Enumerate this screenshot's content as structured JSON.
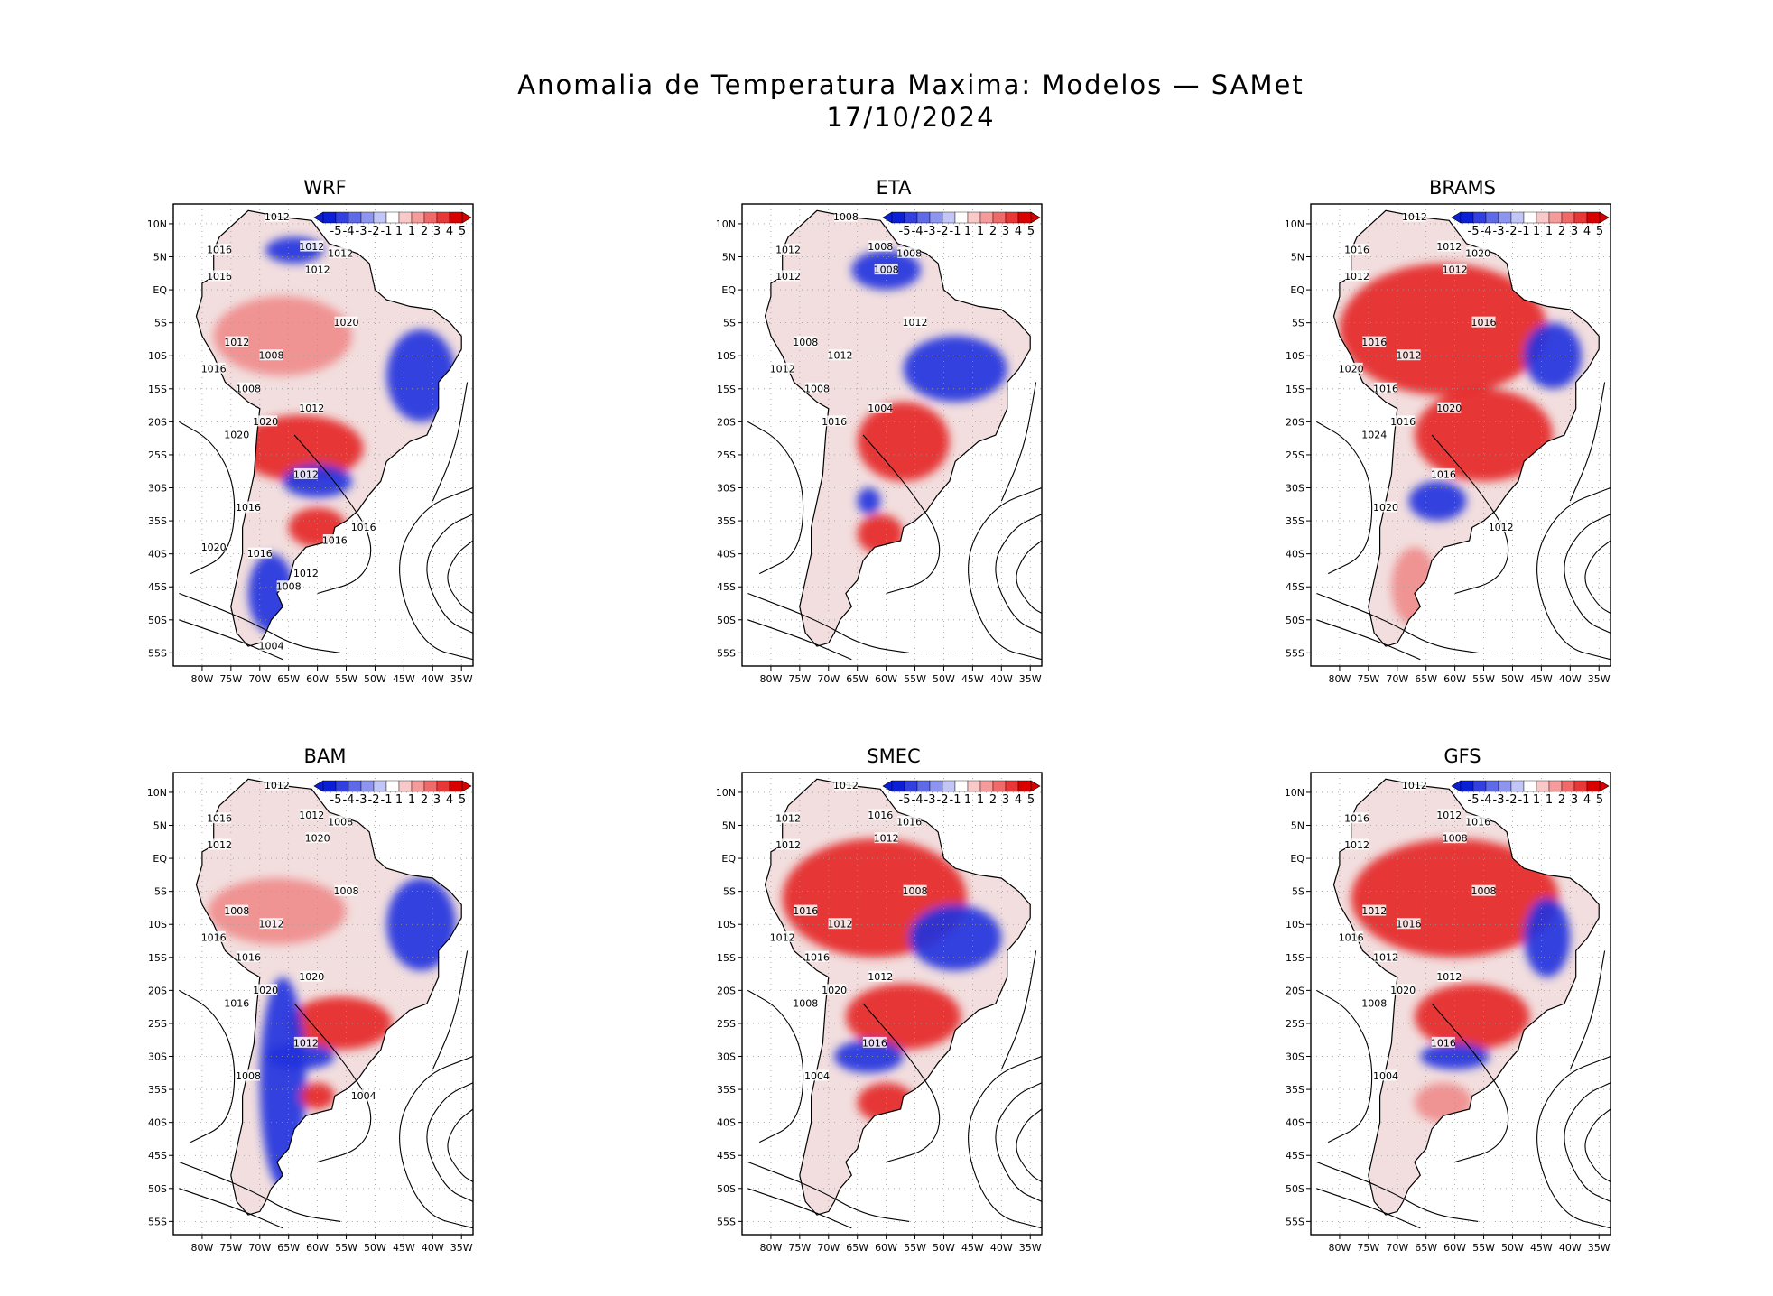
{
  "title": {
    "line1": "Anomalia de Temperatura Maxima: Modelos — SAMet",
    "line2": "17/10/2024"
  },
  "axes": {
    "lat_labels": [
      "10N",
      "5N",
      "EQ",
      "5S",
      "10S",
      "15S",
      "20S",
      "25S",
      "30S",
      "35S",
      "40S",
      "45S",
      "50S",
      "55S"
    ],
    "lon_labels": [
      "80W",
      "75W",
      "70W",
      "65W",
      "60W",
      "55W",
      "50W",
      "45W",
      "40W",
      "35W"
    ]
  },
  "legend": {
    "labels": [
      "-5",
      "-4",
      "-3",
      "-2",
      "-1",
      "1",
      "1",
      "2",
      "3",
      "4",
      "5"
    ],
    "colors": [
      "#0a1fd6",
      "#3340e0",
      "#5f6ae8",
      "#8d95f0",
      "#c2c6f7",
      "#ffffff",
      "#f9c8c8",
      "#f59b9b",
      "#f06a6a",
      "#e83737",
      "#d90000"
    ]
  },
  "colors": {
    "warm": "#e52626",
    "cold": "#2233dd",
    "land_neutral": "#f2dede",
    "contour": "#000000"
  },
  "panels": [
    {
      "name": "WRF",
      "isobars": [
        "1012",
        "1016",
        "1012",
        "1012",
        "1012",
        "1016",
        "1020",
        "1012",
        "1008",
        "1016",
        "1008",
        "1020",
        "1012",
        "1020",
        "1012",
        "1016",
        "1016",
        "1020",
        "1016",
        "1012",
        "1016",
        "1008",
        "1004"
      ]
    },
    {
      "name": "ETA",
      "isobars": [
        "1008",
        "1012",
        "1008",
        "1008",
        "1008",
        "1012",
        "1012",
        "1008",
        "1012",
        "1012",
        "1008",
        "1016",
        "1004"
      ]
    },
    {
      "name": "BRAMS",
      "isobars": [
        "1012",
        "1016",
        "1012",
        "1020",
        "1012",
        "1012",
        "1016",
        "1016",
        "1012",
        "1020",
        "1016",
        "1016",
        "1020",
        "1024",
        "1016",
        "1020",
        "1012"
      ]
    },
    {
      "name": "BAM",
      "isobars": [
        "1012",
        "1016",
        "1012",
        "1008",
        "1020",
        "1012",
        "1008",
        "1008",
        "1012",
        "1016",
        "1016",
        "1020",
        "1020",
        "1016",
        "1012",
        "1008",
        "1004"
      ]
    },
    {
      "name": "SMEC",
      "isobars": [
        "1012",
        "1012",
        "1016",
        "1016",
        "1012",
        "1012",
        "1008",
        "1016",
        "1012",
        "1012",
        "1016",
        "1020",
        "1012",
        "1008",
        "1016",
        "1004"
      ]
    },
    {
      "name": "GFS",
      "isobars": [
        "1012",
        "1016",
        "1012",
        "1016",
        "1008",
        "1012",
        "1008",
        "1012",
        "1016",
        "1016",
        "1012",
        "1020",
        "1012",
        "1008",
        "1016",
        "1004"
      ]
    }
  ]
}
